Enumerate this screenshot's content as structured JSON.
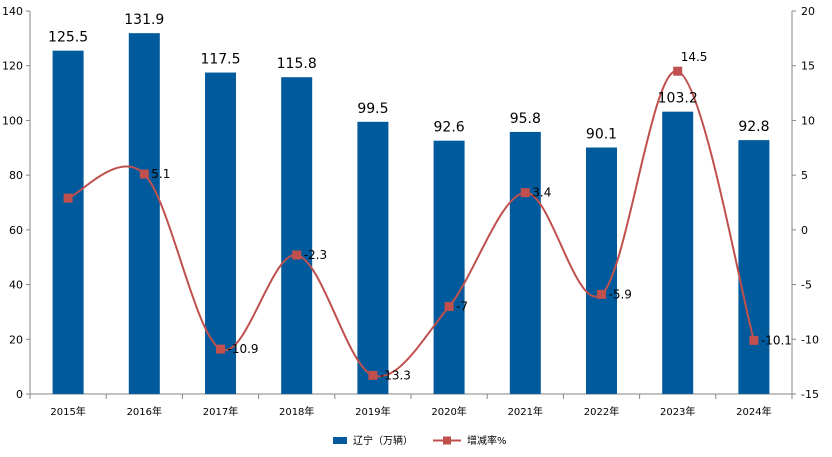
{
  "chart_data": {
    "type": "bar",
    "categories": [
      "2015年",
      "2016年",
      "2017年",
      "2018年",
      "2019年",
      "2020年",
      "2021年",
      "2022年",
      "2023年",
      "2024年"
    ],
    "series": [
      {
        "name": "辽宁（万辆）",
        "type": "bar",
        "axis": "left",
        "color": "#005A9C",
        "values": [
          125.5,
          131.9,
          117.5,
          115.8,
          99.5,
          92.6,
          95.8,
          90.1,
          103.2,
          92.8
        ],
        "labels": [
          "125.5",
          "131.9",
          "117.5",
          "115.8",
          "99.5",
          "92.6",
          "95.8",
          "90.1",
          "103.2",
          "92.8"
        ]
      },
      {
        "name": "增减率%",
        "type": "line",
        "axis": "right",
        "color": "#C0504D",
        "values": [
          2.9,
          5.1,
          -10.9,
          -2.3,
          -13.3,
          -7,
          3.4,
          -5.9,
          14.5,
          -10.1
        ],
        "labels": [
          "",
          "5.1",
          "-10.9",
          "-2.3",
          "-13.3",
          "-7",
          "3.4",
          "-5.9",
          "14.5",
          "-10.1"
        ]
      }
    ],
    "ylim_left": [
      0,
      140
    ],
    "yticks_left": [
      "0",
      "20",
      "40",
      "60",
      "80",
      "100",
      "120",
      "140"
    ],
    "ylim_right": [
      -15,
      20
    ],
    "yticks_right": [
      "-15",
      "-10",
      "-5",
      "0",
      "5",
      "10",
      "15",
      "20"
    ],
    "grid": false,
    "legend_position": "bottom",
    "title": "",
    "xlabel": "",
    "ylabel": ""
  }
}
